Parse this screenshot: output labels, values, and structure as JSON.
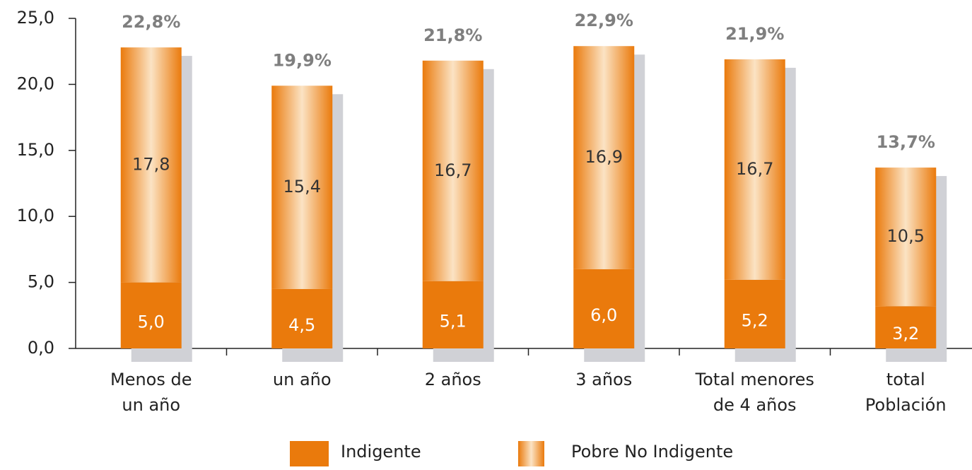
{
  "chart_data": {
    "type": "stacked_bar",
    "categories": [
      [
        "Menos de",
        "un año"
      ],
      [
        "un año"
      ],
      [
        "2 años"
      ],
      [
        "3 años"
      ],
      [
        "Total menores",
        "de 4 años"
      ],
      [
        "total",
        "Población"
      ]
    ],
    "series": [
      {
        "name": "Indigente",
        "color": "#ea7a0c",
        "values": [
          5.0,
          4.5,
          5.1,
          6.0,
          5.2,
          3.2
        ],
        "value_labels": [
          "5,0",
          "4,5",
          "5,1",
          "6,0",
          "5,2",
          "3,2"
        ]
      },
      {
        "name": "Pobre No Indigente",
        "color": "#ea7a0c",
        "highlight": "#fbe3c4",
        "values": [
          17.8,
          15.4,
          16.7,
          16.9,
          16.7,
          10.5
        ],
        "value_labels": [
          "17,8",
          "15,4",
          "16,7",
          "16,9",
          "16,7",
          "10,5"
        ]
      }
    ],
    "totals": [
      22.8,
      19.9,
      21.8,
      22.9,
      21.9,
      13.7
    ],
    "total_labels": [
      "22,8%",
      "19,9%",
      "21,8%",
      "22,9%",
      "21,9%",
      "13,7%"
    ],
    "ylim": [
      0,
      25
    ],
    "yticks": [
      {
        "value": 0,
        "label": "0,0"
      },
      {
        "value": 5,
        "label": "5,0"
      },
      {
        "value": 10,
        "label": "10,0"
      },
      {
        "value": 15,
        "label": "15,0"
      },
      {
        "value": 20,
        "label": "20,0"
      },
      {
        "value": 25,
        "label": "25,0"
      }
    ],
    "legend": "bottom"
  }
}
